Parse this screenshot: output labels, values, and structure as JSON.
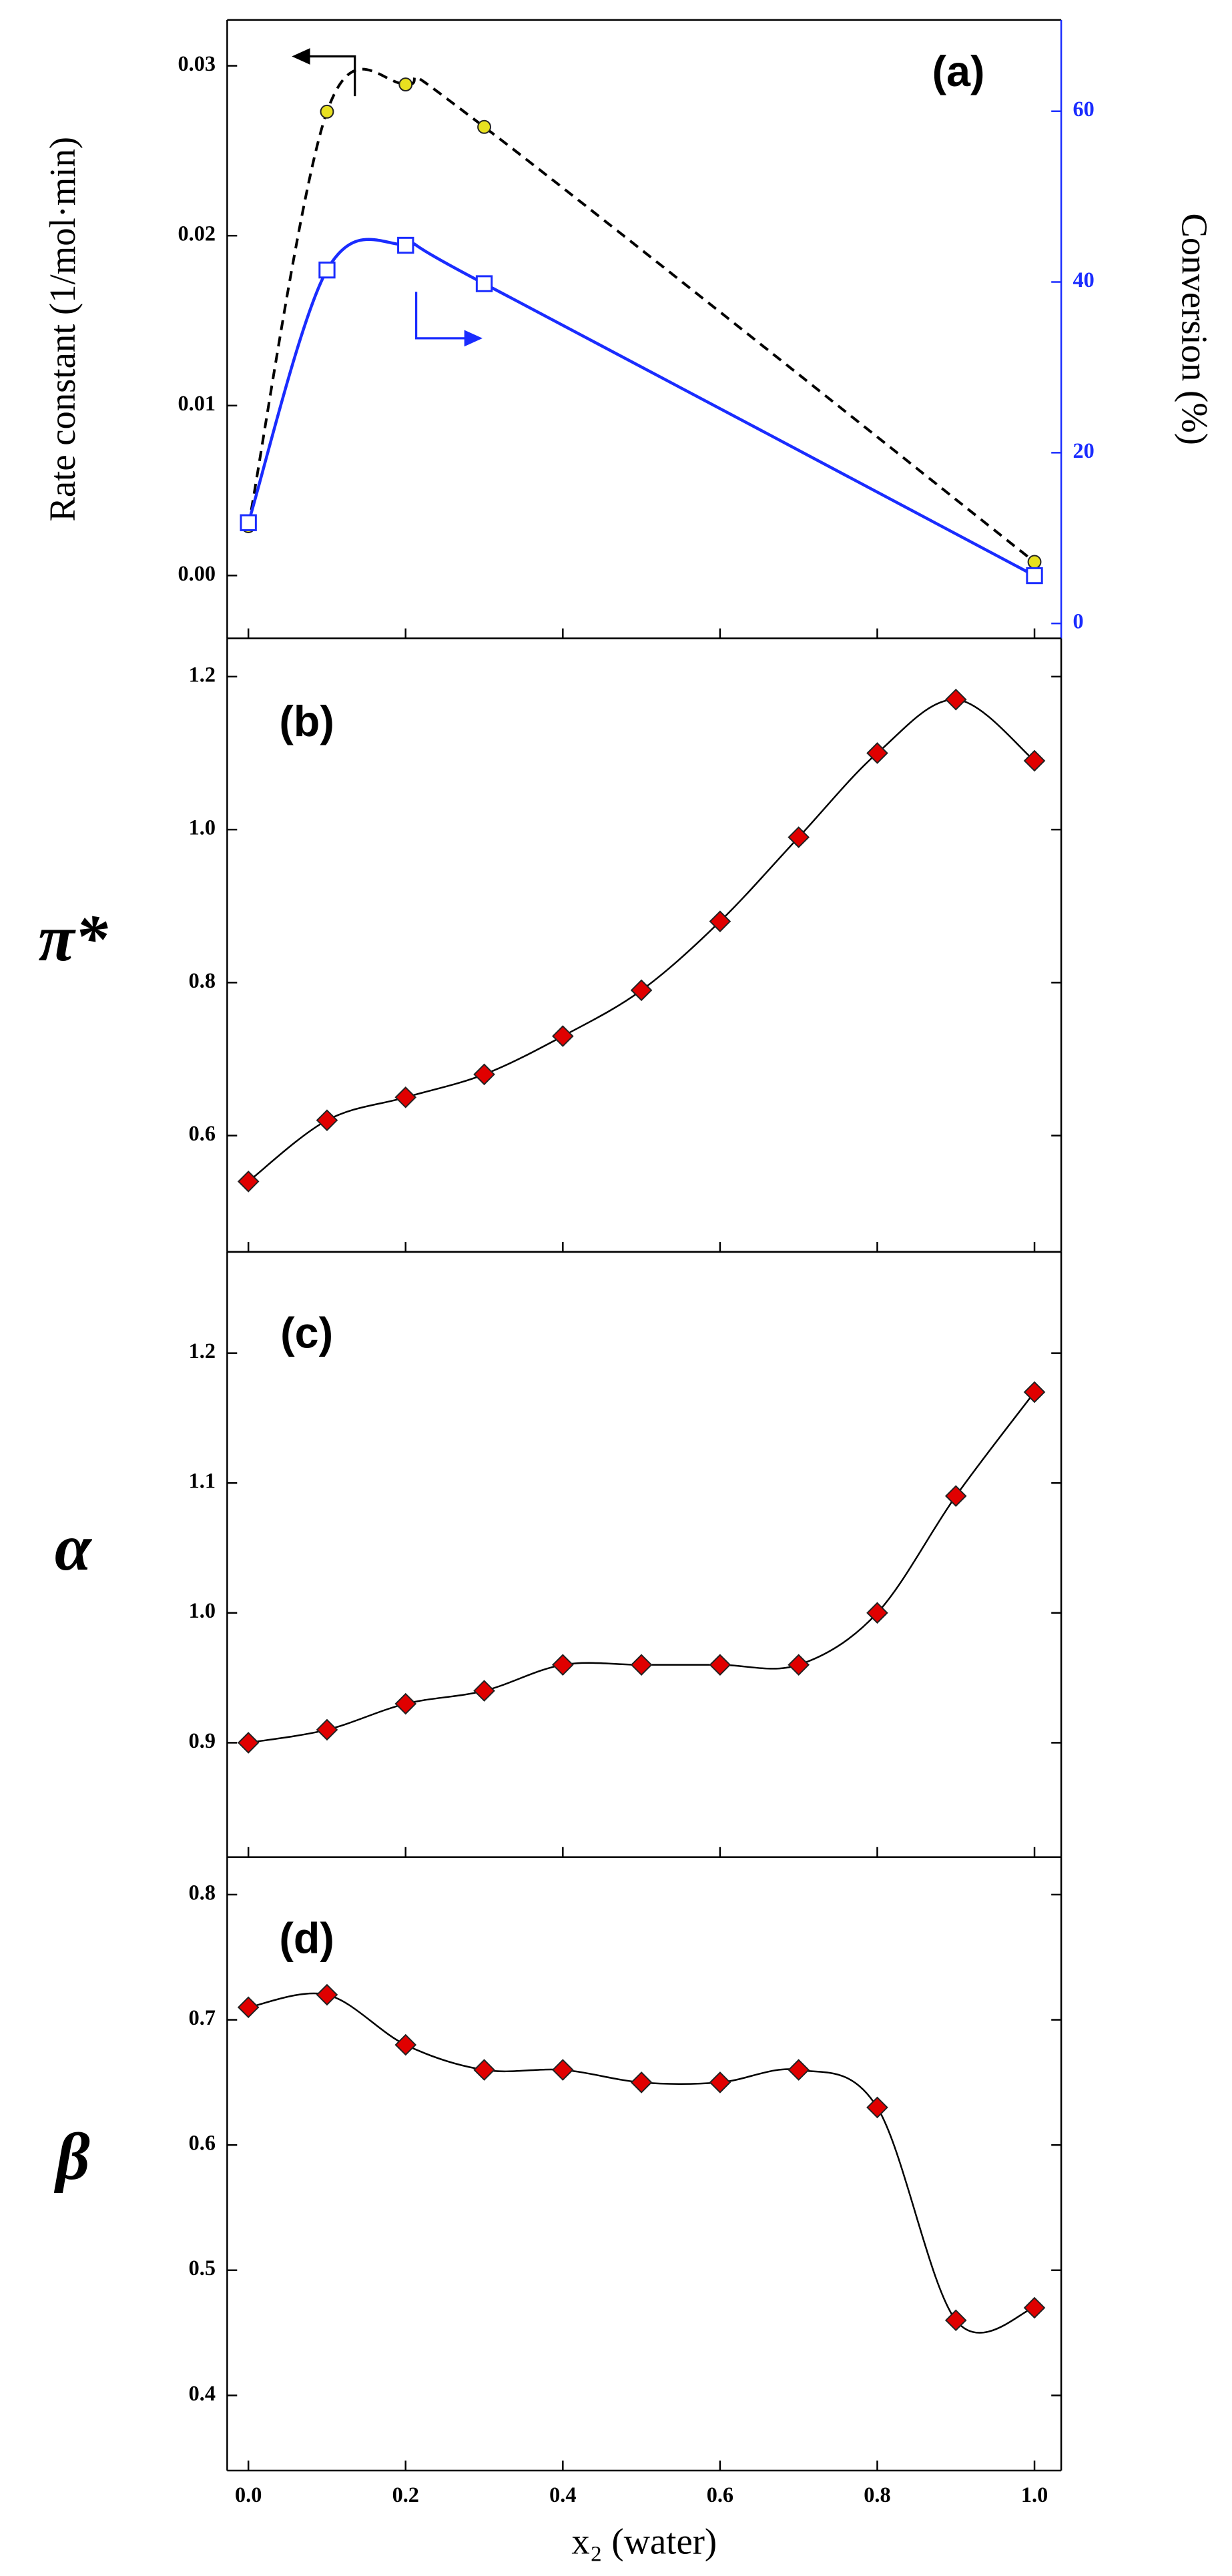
{
  "chart_data": [
    {
      "type": "line",
      "annotation": "(a)",
      "y_label": "Rate constant (1/mol·min)",
      "y2_label": "Conversion (%)",
      "x": [
        0,
        0.1,
        0.2,
        0.3,
        1.0
      ],
      "xlim": [
        -0.027,
        1.034
      ],
      "xticks": [
        0,
        0.2,
        0.4,
        0.6,
        0.8,
        1
      ],
      "ylim": [
        -0.0037,
        0.0327
      ],
      "yticks": [
        {
          "value": 0,
          "label": "0.00"
        },
        0.01,
        0.02,
        0.03
      ],
      "y2lim": [
        -1.75,
        70.7
      ],
      "y2ticks": [
        0,
        20,
        40,
        60
      ],
      "y2_color": "#1a2cff",
      "series": [
        {
          "color": "#e8e020",
          "line_color": "#000000",
          "line_style": "dashed",
          "marker": "circle",
          "values": [
            0.0029,
            0.0273,
            0.0289,
            0.0264,
            0.0008
          ]
        },
        {
          "color": "#1a2cff",
          "line_color": "#1a2cff",
          "line_style": "solid",
          "marker": "square",
          "axis": "y2",
          "values": [
            11.8,
            41.4,
            44.3,
            39.8,
            5.6
          ]
        }
      ]
    },
    {
      "type": "line",
      "annotation": "(b)",
      "y_label": "π*",
      "x": [
        0,
        0.1,
        0.2,
        0.3,
        0.4,
        0.5,
        0.6,
        0.7,
        0.8,
        0.9,
        1.0
      ],
      "xlim": [
        -0.027,
        1.034
      ],
      "xticks": [
        0,
        0.2,
        0.4,
        0.6,
        0.8,
        1
      ],
      "ylim": [
        0.448,
        1.25
      ],
      "yticks": [
        0.6,
        0.8,
        {
          "value": 1,
          "label": "1.0"
        },
        1.2
      ],
      "series": [
        {
          "color": "#e00000",
          "line_color": "#000000",
          "line_style": "solid",
          "marker": "diamond",
          "values": [
            0.54,
            0.62,
            0.65,
            0.68,
            0.73,
            0.79,
            0.88,
            0.99,
            1.1,
            1.17,
            1.09
          ]
        }
      ]
    },
    {
      "type": "line",
      "annotation": "(c)",
      "y_label": "α",
      "x": [
        0,
        0.1,
        0.2,
        0.3,
        0.4,
        0.5,
        0.6,
        0.7,
        0.8,
        0.9,
        1.0
      ],
      "xlim": [
        -0.027,
        1.034
      ],
      "xticks": [
        0,
        0.2,
        0.4,
        0.6,
        0.8,
        1
      ],
      "ylim": [
        0.812,
        1.278
      ],
      "yticks": [
        0.9,
        {
          "value": 1,
          "label": "1.0"
        },
        1.1,
        1.2
      ],
      "series": [
        {
          "color": "#e00000",
          "line_color": "#000000",
          "line_style": "solid",
          "marker": "diamond",
          "values": [
            0.9,
            0.91,
            0.93,
            0.94,
            0.96,
            0.96,
            0.96,
            0.96,
            1.0,
            1.09,
            1.17
          ]
        }
      ]
    },
    {
      "type": "line",
      "annotation": "(d)",
      "y_label": "β",
      "x_label": "x₂ (water)",
      "x": [
        0,
        0.1,
        0.2,
        0.3,
        0.4,
        0.5,
        0.6,
        0.7,
        0.8,
        0.9,
        1.0
      ],
      "xlim": [
        -0.027,
        1.034
      ],
      "xticks": [
        {
          "value": 0,
          "label": "0.0"
        },
        0.2,
        0.4,
        0.6,
        0.8,
        {
          "value": 1,
          "label": "1.0"
        }
      ],
      "ylim": [
        0.34,
        0.83
      ],
      "yticks": [
        0.4,
        0.5,
        0.6,
        0.7,
        0.8
      ],
      "series": [
        {
          "color": "#e00000",
          "line_color": "#000000",
          "line_style": "solid",
          "marker": "diamond",
          "values": [
            0.71,
            0.72,
            0.68,
            0.66,
            0.66,
            0.65,
            0.65,
            0.66,
            0.63,
            0.46,
            0.47
          ]
        }
      ]
    }
  ]
}
